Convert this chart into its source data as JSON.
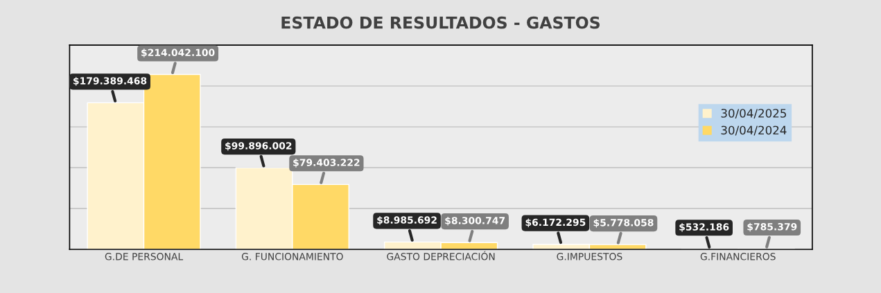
{
  "chart_data": {
    "type": "bar",
    "title": "ESTADO DE RESULTADOS - GASTOS",
    "categories": [
      "G.DE PERSONAL",
      "G. FUNCIONAMIENTO",
      "GASTO DEPRECIACIÓN",
      "G.IMPUESTOS",
      "G.FINANCIEROS"
    ],
    "series": [
      {
        "name": "30/04/2025",
        "color": "#fff2cc",
        "values": [
          179389468,
          99896002,
          8985692,
          6172295,
          532186
        ],
        "value_labels": [
          "$179.389.468",
          "$99.896.002",
          "$8.985.692",
          "$6.172.295",
          "$532.186"
        ]
      },
      {
        "name": "30/04/2024",
        "color": "#ffd966",
        "values": [
          214042100,
          79403222,
          8300747,
          5778058,
          785379
        ],
        "value_labels": [
          "$214.042.100",
          "$79.403.222",
          "$8.300.747",
          "$5.778.058",
          "$785.379"
        ]
      }
    ],
    "ylim": [
      0,
      250000000
    ],
    "yticks": [
      {
        "value": 0,
        "label": null
      },
      {
        "value": 50000000,
        "label": null
      },
      {
        "value": 100000000,
        "label": null
      },
      {
        "value": 150000000,
        "label": null
      },
      {
        "value": 200000000,
        "label": null
      },
      {
        "value": 250000000,
        "label": null
      }
    ],
    "tick_labels": "x",
    "grid": "y",
    "legend": "right"
  }
}
